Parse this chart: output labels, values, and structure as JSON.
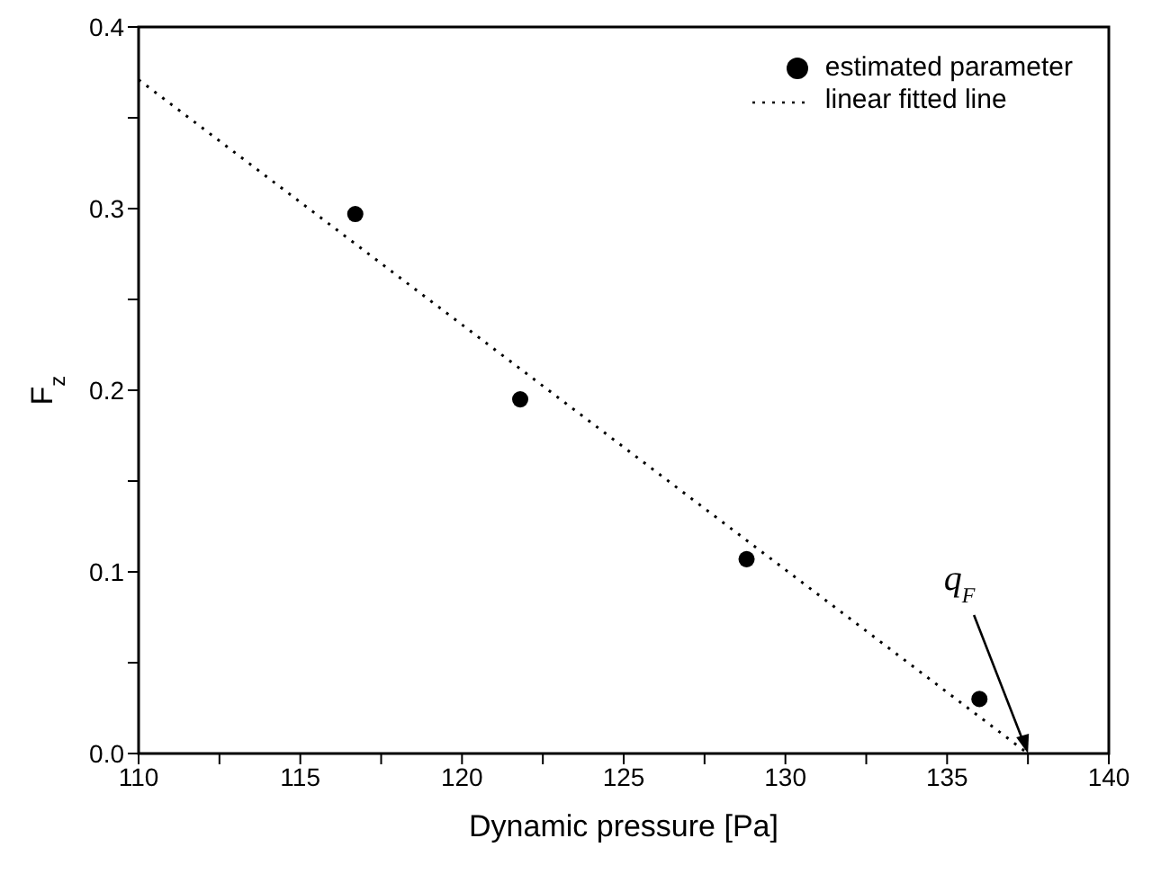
{
  "chart_data": {
    "type": "scatter",
    "xlabel": "Dynamic pressure [Pa]",
    "ylabel": "F$_{z}$",
    "xlim": [
      110,
      140
    ],
    "ylim": [
      0,
      0.4
    ],
    "xticks": [
      110,
      {
        "value": 112.5,
        "label": null
      },
      115,
      {
        "value": 117.5,
        "label": null
      },
      120,
      {
        "value": 122.5,
        "label": null
      },
      125,
      {
        "value": 127.5,
        "label": null
      },
      130,
      {
        "value": 132.5,
        "label": null
      },
      135,
      {
        "value": 137.5,
        "label": null
      },
      140
    ],
    "yticks": [
      {
        "value": 0,
        "label": "0.0"
      },
      {
        "value": 0.05,
        "label": null
      },
      0.1,
      {
        "value": 0.15,
        "label": null
      },
      0.2,
      {
        "value": 0.25,
        "label": null
      },
      0.3,
      {
        "value": 0.35,
        "label": null
      },
      0.4
    ],
    "legend": "top right",
    "grid": false,
    "series": [
      {
        "name": "estimated parameter",
        "marker": "circle",
        "color": "#000000",
        "x": [
          116.7,
          121.8,
          128.8,
          136.0
        ],
        "values": [
          0.297,
          0.195,
          0.107,
          0.03
        ]
      },
      {
        "name": "linear fitted line",
        "type": "line",
        "line_style": "dotted",
        "marker": "none",
        "color": "#000000",
        "x": [
          110,
          137.5
        ],
        "values": [
          0.371,
          0
        ]
      }
    ],
    "annotations": [
      {
        "text": "q$_{F}$",
        "x": 137.5,
        "y": 0
      }
    ]
  }
}
